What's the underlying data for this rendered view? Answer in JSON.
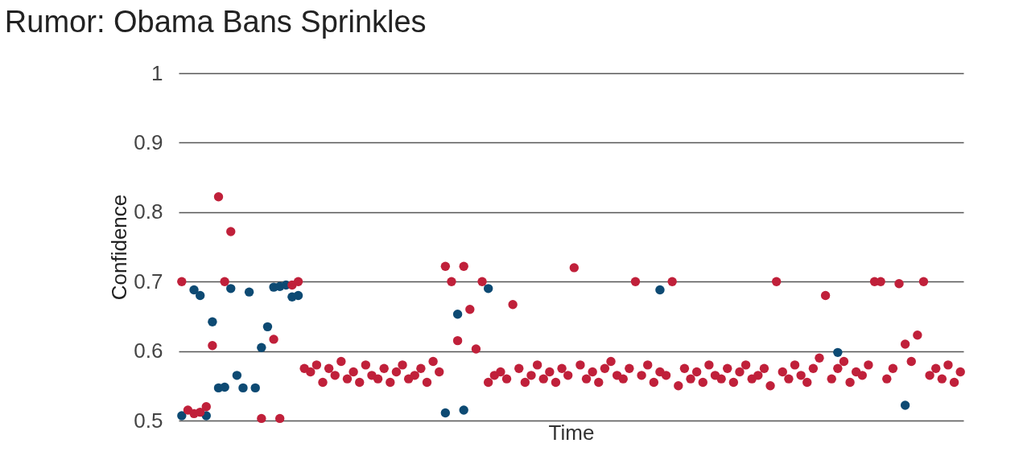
{
  "chart_data": {
    "type": "scatter",
    "title": "Rumor: Obama Bans Sprinkles",
    "xlabel": "Time",
    "ylabel": "Confidence",
    "categories": [
      null,
      null,
      null,
      null,
      null,
      null,
      null,
      null,
      null,
      null,
      null,
      null,
      null,
      null,
      null,
      null,
      null,
      null,
      null,
      null,
      null,
      null,
      null,
      null,
      null,
      null,
      null,
      null,
      null,
      null,
      null,
      null,
      null,
      null,
      null,
      null,
      null,
      null,
      null,
      null,
      null,
      null,
      null,
      null,
      null,
      null,
      null,
      null,
      null,
      null,
      null,
      null,
      null,
      null,
      null,
      null,
      null,
      null,
      null,
      null,
      null,
      null,
      null,
      null,
      null,
      null,
      null,
      null,
      null,
      null,
      null,
      null,
      null,
      null,
      null,
      null,
      null,
      null,
      null,
      null,
      null,
      null,
      null,
      null,
      null,
      null,
      null,
      null,
      null,
      null,
      null,
      null,
      null,
      null,
      null,
      null,
      null,
      null,
      null,
      null,
      null,
      null,
      null,
      null,
      null,
      null,
      null,
      null,
      null,
      null,
      null,
      null,
      null,
      null,
      null,
      null,
      null,
      null,
      null,
      null,
      null,
      null,
      null,
      null,
      null,
      null,
      null,
      null
    ],
    "series": [
      {
        "color": "#0d4a73",
        "values": [
          0.507,
          null,
          0.688,
          0.68,
          0.507,
          0.642,
          0.547,
          0.548,
          0.69,
          0.565,
          0.547,
          0.685,
          0.547,
          0.605,
          0.635,
          0.692,
          0.693,
          0.695,
          0.678,
          0.68,
          null,
          null,
          null,
          null,
          null,
          null,
          null,
          null,
          null,
          null,
          null,
          null,
          null,
          null,
          null,
          null,
          null,
          null,
          null,
          null,
          null,
          null,
          null,
          0.511,
          null,
          0.653,
          0.515,
          null,
          null,
          null,
          0.69,
          null,
          null,
          null,
          null,
          null,
          null,
          null,
          null,
          null,
          null,
          null,
          null,
          null,
          null,
          null,
          null,
          null,
          null,
          null,
          null,
          null,
          null,
          null,
          null,
          null,
          null,
          null,
          0.688,
          null,
          null,
          null,
          null,
          null,
          null,
          null,
          null,
          null,
          null,
          null,
          null,
          null,
          null,
          null,
          null,
          null,
          null,
          null,
          null,
          null,
          null,
          null,
          null,
          null,
          null,
          null,
          null,
          0.598,
          null,
          null,
          null,
          null,
          null,
          null,
          null,
          null,
          null,
          null,
          0.522,
          null,
          null,
          null,
          null,
          null,
          null,
          null,
          null,
          null
        ]
      },
      {
        "color": "#c0203a",
        "values": [
          0.7,
          0.515,
          0.51,
          0.512,
          0.52,
          0.608,
          0.822,
          0.7,
          0.772,
          null,
          null,
          null,
          null,
          0.503,
          null,
          0.617,
          0.503,
          null,
          0.695,
          0.7,
          0.575,
          0.57,
          0.58,
          0.555,
          0.575,
          0.565,
          0.585,
          0.56,
          0.57,
          0.555,
          0.58,
          0.565,
          0.56,
          0.575,
          0.555,
          0.57,
          0.58,
          0.56,
          0.565,
          0.575,
          0.555,
          0.585,
          0.57,
          0.722,
          0.7,
          0.615,
          0.722,
          0.66,
          0.603,
          0.7,
          0.555,
          0.565,
          0.57,
          0.56,
          0.667,
          0.575,
          0.555,
          0.565,
          0.58,
          0.56,
          0.57,
          0.555,
          0.575,
          0.565,
          0.72,
          0.58,
          0.56,
          0.57,
          0.555,
          0.575,
          0.585,
          0.565,
          0.56,
          0.575,
          0.7,
          0.565,
          0.58,
          0.555,
          0.57,
          0.565,
          0.7,
          0.55,
          0.575,
          0.56,
          0.57,
          0.555,
          0.58,
          0.565,
          0.56,
          0.575,
          0.555,
          0.57,
          0.58,
          0.56,
          0.565,
          0.575,
          0.55,
          0.7,
          0.57,
          0.56,
          0.58,
          0.565,
          0.555,
          0.575,
          0.59,
          0.68,
          0.56,
          0.575,
          0.585,
          0.555,
          0.57,
          0.565,
          0.58,
          0.7,
          0.7,
          0.56,
          0.575,
          0.697,
          0.61,
          0.585,
          0.623,
          0.7,
          0.565,
          0.575,
          0.56,
          0.58,
          0.555,
          0.57
        ]
      }
    ],
    "ylim": [
      0.5,
      1
    ],
    "yticks": [
      0.5,
      0.6,
      0.7,
      0.8,
      0.9,
      1
    ],
    "grid": "y",
    "marker": "circle"
  }
}
